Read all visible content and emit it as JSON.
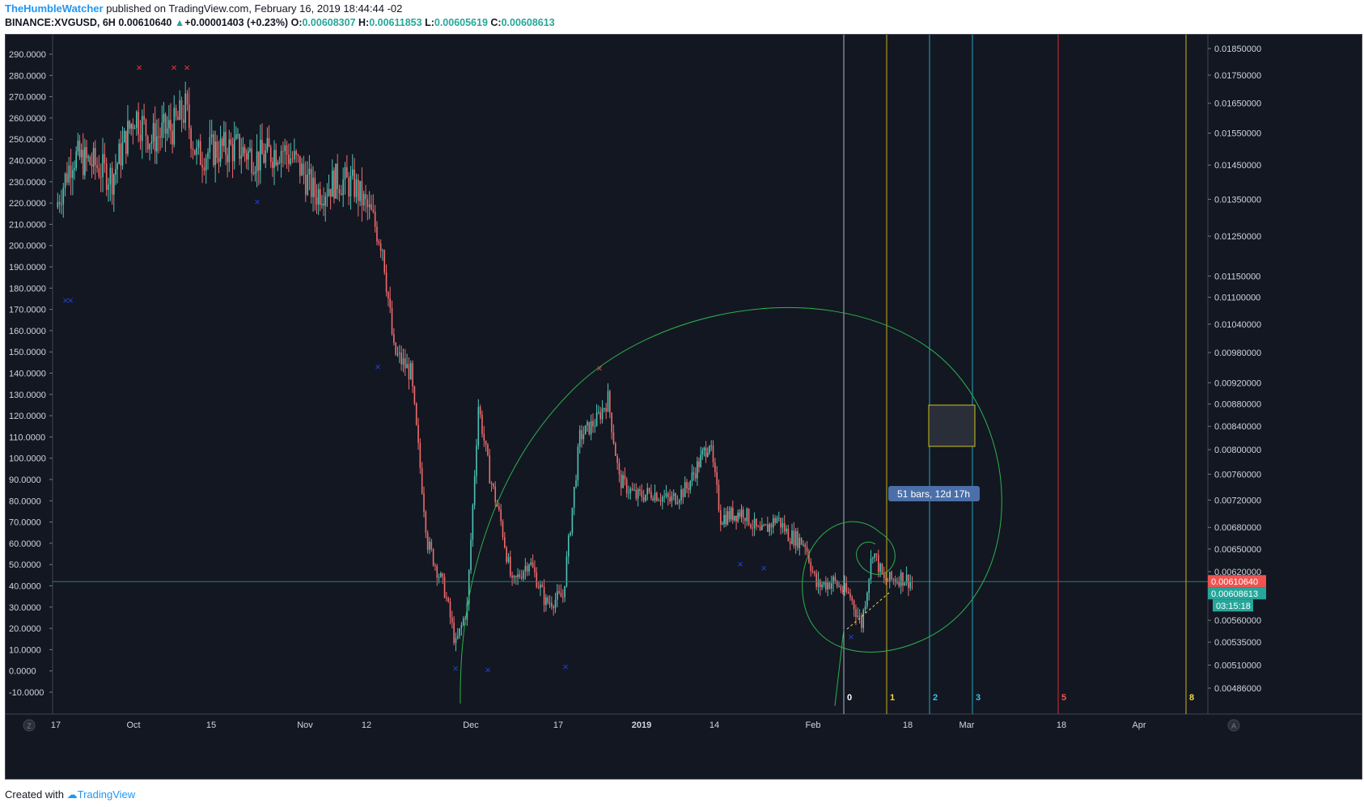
{
  "header": {
    "author": "TheHumbleWatcher",
    "published_text": "published on TradingView.com, February 16, 2019 18:44:44 -02",
    "symbol": "BINANCE:XVGUSD, 6H",
    "last": "0.00610640",
    "change_arrow": "▲",
    "change": "+0.00001403 (+0.23%)",
    "o_label": "O:",
    "o": "0.00608307",
    "h_label": "H:",
    "h": "0.00611853",
    "l_label": "L:",
    "l": "0.00605619",
    "c_label": "C:",
    "c": "0.00608613"
  },
  "footer": {
    "created_with": "Created with",
    "brand": "TradingView"
  },
  "colors": {
    "background": "#131722",
    "up": "#4fc3b4",
    "down": "#ef6b6b",
    "grid": "#2a2e39",
    "text": "#d1d4dc",
    "circle": "#2bb34a",
    "price_line": "#2e7d6b",
    "time_white": "#b2b5be",
    "time_yellow": "#c9b11a",
    "time_cyan": "#2aa3c0",
    "time_red": "#d32f2f"
  },
  "chart_data": {
    "type": "candlestick",
    "left_axis_ticks": [
      "290.0000",
      "280.0000",
      "270.0000",
      "260.0000",
      "250.0000",
      "240.0000",
      "230.0000",
      "220.0000",
      "210.0000",
      "200.0000",
      "190.0000",
      "180.0000",
      "170.0000",
      "160.0000",
      "150.0000",
      "140.0000",
      "130.0000",
      "120.0000",
      "110.0000",
      "100.0000",
      "90.0000",
      "80.0000",
      "70.0000",
      "60.0000",
      "50.0000",
      "40.0000",
      "30.0000",
      "20.0000",
      "10.0000",
      "0.0000",
      "-10.0000"
    ],
    "right_axis_ticks": [
      "0.01850000",
      "0.01750000",
      "0.01650000",
      "0.01550000",
      "0.01450000",
      "0.01350000",
      "0.01250000",
      "0.01150000",
      "0.01100000",
      "0.01040000",
      "0.00980000",
      "0.00920000",
      "0.00880000",
      "0.00840000",
      "0.00800000",
      "0.00760000",
      "0.00720000",
      "0.00680000",
      "0.00650000",
      "0.00620000",
      "0.00560000",
      "0.00535000",
      "0.00510000",
      "0.00486000"
    ],
    "right_axis_scale": "log",
    "x_ticks": [
      "17",
      "Oct",
      "15",
      "Nov",
      "12",
      "Dec",
      "17",
      "2019",
      "14",
      "Feb",
      "18",
      "Mar",
      "18",
      "Apr"
    ],
    "x_tick_bold": "2019",
    "series_close_trend": [
      [
        "2018-09-17",
        218
      ],
      [
        "2018-09-20",
        242
      ],
      [
        "2018-09-24",
        238
      ],
      [
        "2018-09-27",
        232
      ],
      [
        "2018-10-01",
        262
      ],
      [
        "2018-10-04",
        250
      ],
      [
        "2018-10-08",
        256
      ],
      [
        "2018-10-10",
        264
      ],
      [
        "2018-10-12",
        242
      ],
      [
        "2018-10-15",
        245
      ],
      [
        "2018-10-19",
        246
      ],
      [
        "2018-10-23",
        241
      ],
      [
        "2018-10-27",
        246
      ],
      [
        "2018-10-30",
        238
      ],
      [
        "2018-11-02",
        224
      ],
      [
        "2018-11-06",
        231
      ],
      [
        "2018-11-09",
        228
      ],
      [
        "2018-11-12",
        214
      ],
      [
        "2018-11-14",
        200
      ],
      [
        "2018-11-16",
        150
      ],
      [
        "2018-11-19",
        140
      ],
      [
        "2018-11-22",
        60
      ],
      [
        "2018-11-25",
        38
      ],
      [
        "2018-11-27",
        12
      ],
      [
        "2018-11-29",
        30
      ],
      [
        "2018-12-01",
        125
      ],
      [
        "2018-12-03",
        92
      ],
      [
        "2018-12-05",
        70
      ],
      [
        "2018-12-07",
        40
      ],
      [
        "2018-12-10",
        52
      ],
      [
        "2018-12-13",
        32
      ],
      [
        "2018-12-16",
        35
      ],
      [
        "2018-12-19",
        110
      ],
      [
        "2018-12-22",
        118
      ],
      [
        "2018-12-24",
        128
      ],
      [
        "2018-12-26",
        90
      ],
      [
        "2018-12-29",
        82
      ],
      [
        "2019-01-01",
        84
      ],
      [
        "2019-01-04",
        80
      ],
      [
        "2019-01-07",
        86
      ],
      [
        "2019-01-11",
        108
      ],
      [
        "2019-01-13",
        72
      ],
      [
        "2019-01-17",
        75
      ],
      [
        "2019-01-20",
        64
      ],
      [
        "2019-01-23",
        72
      ],
      [
        "2019-01-25",
        64
      ],
      [
        "2019-01-28",
        60
      ],
      [
        "2019-01-30",
        40
      ],
      [
        "2019-02-02",
        42
      ],
      [
        "2019-02-05",
        35
      ],
      [
        "2019-02-07",
        22
      ],
      [
        "2019-02-09",
        57
      ],
      [
        "2019-02-11",
        42
      ],
      [
        "2019-02-14",
        44
      ],
      [
        "2019-02-16",
        42
      ]
    ],
    "current_price": "0.00610640",
    "close_price_label": "0.00608613",
    "countdown": "03:15:18",
    "fib_time_zone_labels": [
      "0",
      "1",
      "2",
      "3",
      "5",
      "8"
    ],
    "measure_label": "51 bars, 12d 17h",
    "axis_buttons": [
      "Z",
      "A"
    ]
  }
}
